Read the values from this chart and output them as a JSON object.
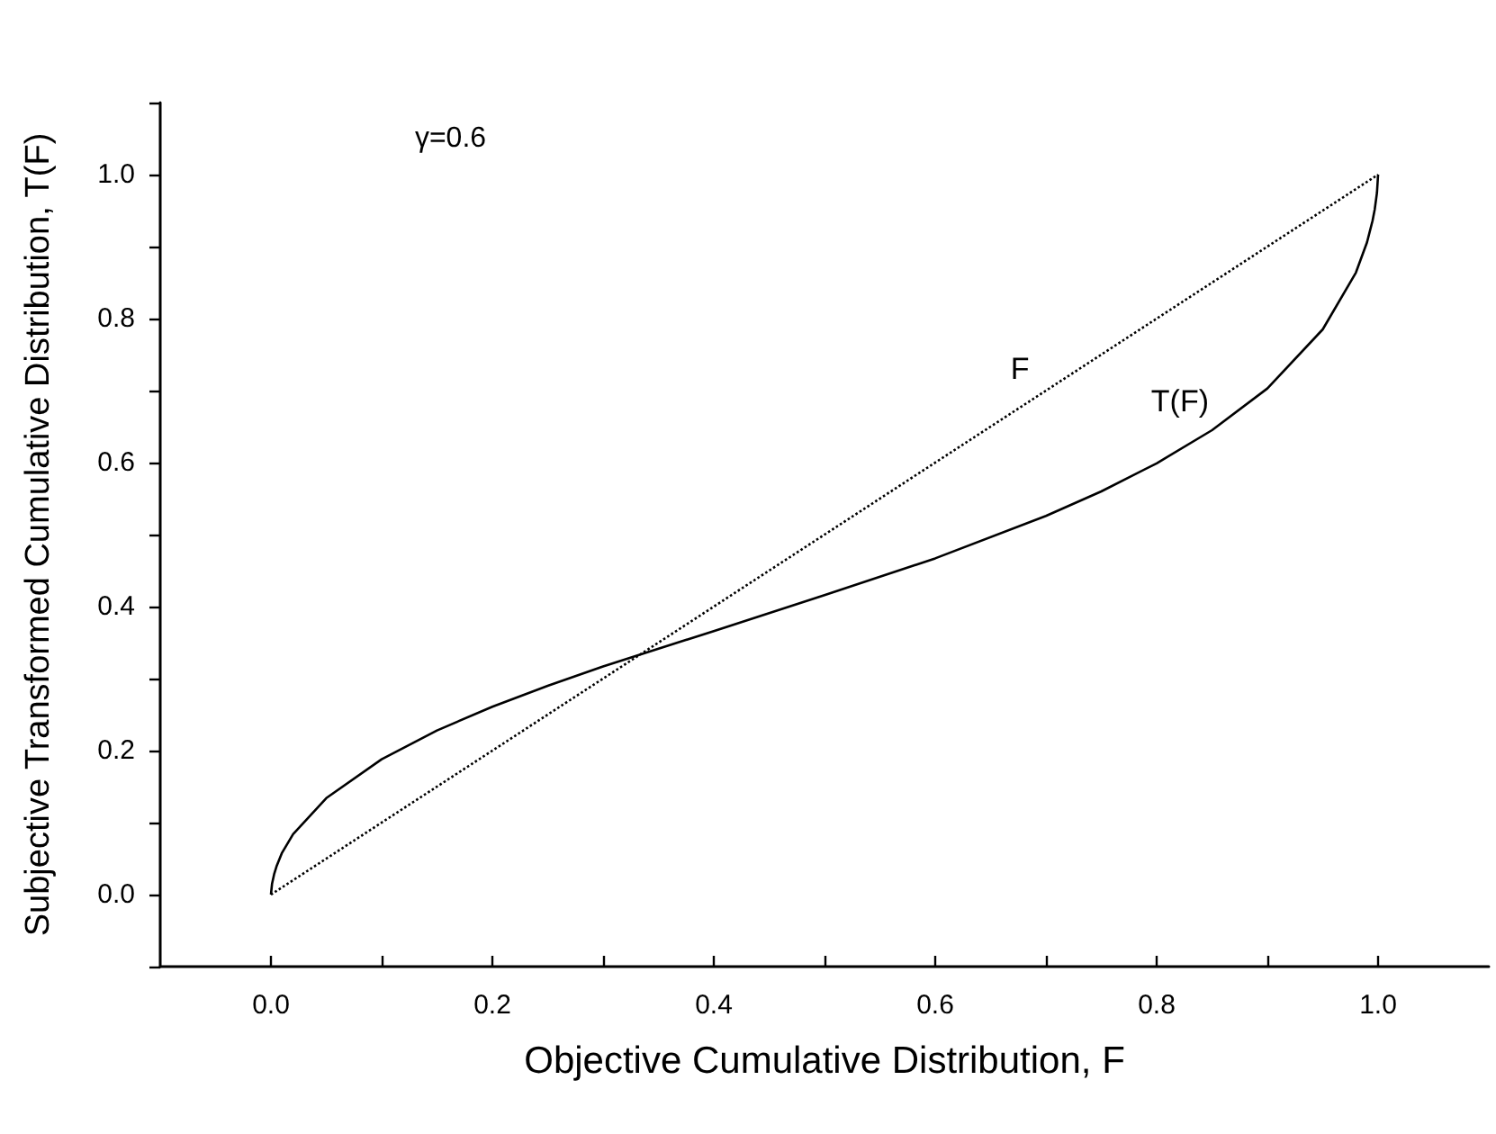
{
  "chart_data": {
    "type": "line",
    "xlabel": "Objective Cumulative Distribution, F",
    "ylabel": "Subjective Transformed Cumulative Distribution, T(F)",
    "annotations": [
      "γ=0.6"
    ],
    "xlim": [
      -0.1,
      1.1
    ],
    "ylim": [
      -0.1,
      1.1
    ],
    "xticks": [
      {
        "value": 0,
        "label": "0.0"
      },
      {
        "value": 0.1,
        "label": null
      },
      0.2,
      {
        "value": 0.3,
        "label": null
      },
      0.4,
      {
        "value": 0.5,
        "label": null
      },
      0.6,
      {
        "value": 0.7,
        "label": null
      },
      0.8,
      {
        "value": 0.9,
        "label": null
      },
      {
        "value": 1,
        "label": "1.0"
      }
    ],
    "yticks": [
      {
        "value": -0.1,
        "label": null
      },
      {
        "value": 0,
        "label": "0.0"
      },
      {
        "value": 0.1,
        "label": null
      },
      0.2,
      {
        "value": 0.3,
        "label": null
      },
      0.4,
      {
        "value": 0.5,
        "label": null
      },
      0.6,
      {
        "value": 0.7,
        "label": null
      },
      0.8,
      {
        "value": 0.9,
        "label": null
      },
      {
        "value": 1,
        "label": "1.0"
      },
      {
        "value": 1.1,
        "label": null
      }
    ],
    "legend": false,
    "marker": "none",
    "series": [
      {
        "name": "F",
        "color": "#000000",
        "line_style": "dotted",
        "x": [
          0,
          1
        ],
        "values": [
          0,
          1
        ]
      },
      {
        "name": "T(F)",
        "color": "#000000",
        "line_style": "solid",
        "x": [
          0,
          0.001,
          0.003,
          0.005,
          0.01,
          0.02,
          0.05,
          0.1,
          0.15,
          0.2,
          0.25,
          0.3,
          0.4,
          0.5,
          0.6,
          0.7,
          0.75,
          0.8,
          0.85,
          0.9,
          0.95,
          0.98,
          0.99,
          0.995,
          0.997,
          0.999,
          1
        ],
        "values": [
          0,
          0.015,
          0.029,
          0.039,
          0.058,
          0.084,
          0.134,
          0.188,
          0.228,
          0.261,
          0.29,
          0.317,
          0.366,
          0.416,
          0.467,
          0.526,
          0.56,
          0.599,
          0.645,
          0.703,
          0.785,
          0.864,
          0.906,
          0.936,
          0.952,
          0.975,
          1
        ]
      }
    ]
  }
}
